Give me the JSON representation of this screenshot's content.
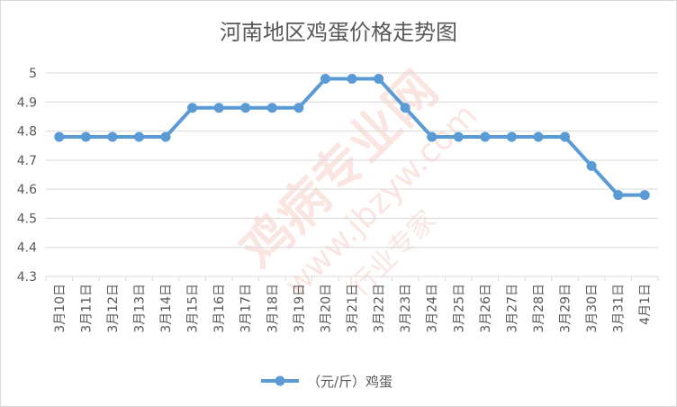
{
  "chart_data": {
    "type": "line",
    "title": "河南地区鸡蛋价格走势图",
    "xlabel": "",
    "ylabel": "",
    "categories": [
      "3月10日",
      "3月11日",
      "3月12日",
      "3月13日",
      "3月14日",
      "3月15日",
      "3月16日",
      "3月17日",
      "3月18日",
      "3月19日",
      "3月20日",
      "3月21日",
      "3月22日",
      "3月23日",
      "3月24日",
      "3月25日",
      "3月26日",
      "3月27日",
      "3月28日",
      "3月29日",
      "3月30日",
      "3月31日",
      "4月1日"
    ],
    "series": [
      {
        "name": "（元/斤）鸡蛋",
        "values": [
          4.78,
          4.78,
          4.78,
          4.78,
          4.78,
          4.88,
          4.88,
          4.88,
          4.88,
          4.88,
          4.98,
          4.98,
          4.98,
          4.88,
          4.78,
          4.78,
          4.78,
          4.78,
          4.78,
          4.78,
          4.68,
          4.58,
          4.58
        ]
      }
    ],
    "ylim": [
      4.3,
      5
    ],
    "yticks": [
      "4.3",
      "4.4",
      "4.5",
      "4.6",
      "4.7",
      "4.8",
      "4.9",
      "5"
    ],
    "grid": true,
    "legend_position": "bottom",
    "colors": {
      "line": "#5b9bd5",
      "grid": "#d9d9d9",
      "text": "#595959"
    }
  },
  "watermark": {
    "brand": "鸡病专业网",
    "url": "www.jbzyw.com",
    "slogan": "行业专家"
  }
}
